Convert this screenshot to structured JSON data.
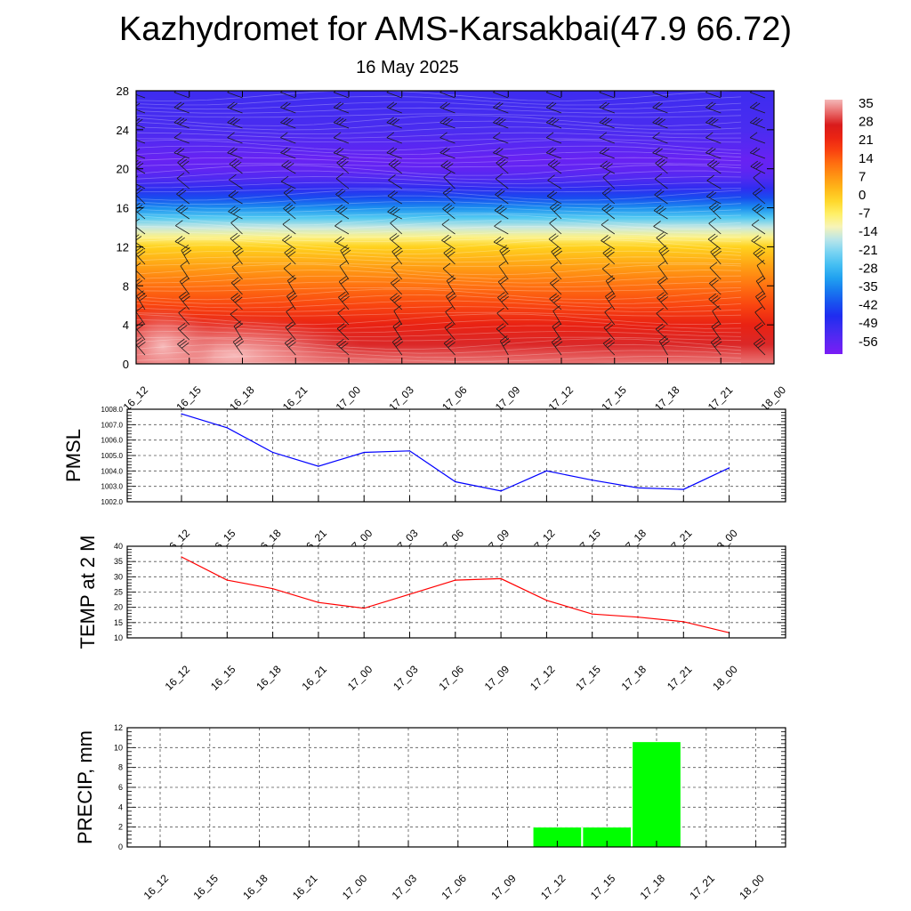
{
  "header": {
    "title": "Kazhydromet for AMS-Karsakbai(47.9 66.72)",
    "date": "16 May 2025"
  },
  "chart_data": [
    {
      "type": "heatmap",
      "name": "upper-air-section",
      "title": "",
      "x_tick_labels": [
        "16_12",
        "16_15",
        "16_18",
        "16_21",
        "17_00",
        "17_03",
        "17_06",
        "17_09",
        "17_12",
        "17_15",
        "17_18",
        "17_21",
        "18_00"
      ],
      "y_tick_labels": [
        "0",
        "4",
        "8",
        "12",
        "16",
        "20",
        "24",
        "28"
      ],
      "ylim": [
        0,
        28
      ],
      "colorbar_labels": [
        "35",
        "28",
        "21",
        "14",
        "7",
        "0",
        "-7",
        "-14",
        "-21",
        "-28",
        "-35",
        "-42",
        "-49",
        "-56"
      ],
      "color_range": [
        -60,
        38
      ],
      "temperature_profile": [
        {
          "y": 0,
          "t": 34
        },
        {
          "y": 2,
          "t": 29
        },
        {
          "y": 4,
          "t": 24
        },
        {
          "y": 6,
          "t": 18
        },
        {
          "y": 8,
          "t": 13
        },
        {
          "y": 10,
          "t": 7
        },
        {
          "y": 12,
          "t": 0
        },
        {
          "y": 13,
          "t": -8
        },
        {
          "y": 14,
          "t": -15
        },
        {
          "y": 15,
          "t": -24
        },
        {
          "y": 16,
          "t": -33
        },
        {
          "y": 17,
          "t": -41
        },
        {
          "y": 18,
          "t": -48
        },
        {
          "y": 19,
          "t": -53
        },
        {
          "y": 20,
          "t": -56
        },
        {
          "y": 21,
          "t": -57
        },
        {
          "y": 22,
          "t": -55
        },
        {
          "y": 24,
          "t": -52
        },
        {
          "y": 26,
          "t": -51
        },
        {
          "y": 28,
          "t": -50
        }
      ],
      "wind_barbs": "present",
      "colors": {
        "hot": "#f08a8a",
        "cold": "#7b2cf0"
      }
    },
    {
      "type": "line",
      "name": "pmsl",
      "ylabel": "PMSL",
      "ylim": [
        1002,
        1008
      ],
      "y_tick_labels": [
        "1002.0",
        "1003.0",
        "1004.0",
        "1005.0",
        "1006.0",
        "1007.0",
        "1008.0"
      ],
      "categories": [
        "16_12",
        "16_15",
        "16_18",
        "16_21",
        "17_00",
        "17_03",
        "17_06",
        "17_09",
        "17_12",
        "17_15",
        "17_18",
        "17_21",
        "18_00"
      ],
      "values": [
        1007.7,
        1006.8,
        1005.2,
        1004.3,
        1005.2,
        1005.3,
        1003.3,
        1002.7,
        1004.0,
        1003.4,
        1002.9,
        1002.8,
        1004.2
      ],
      "color": "#0000ff",
      "grid": true
    },
    {
      "type": "line",
      "name": "temp-2m",
      "ylabel": "TEMP at 2 M",
      "ylim": [
        10,
        40
      ],
      "y_tick_labels": [
        "10",
        "15",
        "20",
        "25",
        "30",
        "35",
        "40"
      ],
      "categories": [
        "16_12",
        "16_15",
        "16_18",
        "16_21",
        "17_00",
        "17_03",
        "17_06",
        "17_09",
        "17_12",
        "17_15",
        "17_18",
        "17_21",
        "18_00"
      ],
      "values": [
        36.5,
        28.9,
        26.1,
        21.6,
        19.7,
        24.3,
        28.9,
        29.4,
        22.3,
        17.8,
        16.8,
        15.3,
        11.7
      ],
      "color": "#ff0000",
      "grid": true
    },
    {
      "type": "bar",
      "name": "precip",
      "ylabel": "PRECIP, mm",
      "ylim": [
        0,
        12
      ],
      "y_tick_labels": [
        "0",
        "2",
        "4",
        "6",
        "8",
        "10",
        "12"
      ],
      "categories": [
        "16_12",
        "16_15",
        "16_18",
        "16_21",
        "17_00",
        "17_03",
        "17_06",
        "17_09",
        "17_12",
        "17_15",
        "17_18",
        "17_21",
        "18_00"
      ],
      "values": [
        0,
        0,
        0,
        0,
        0,
        0,
        0,
        0,
        2.0,
        2.0,
        10.6,
        0,
        0
      ],
      "color": "#00ff00",
      "grid": true
    }
  ]
}
